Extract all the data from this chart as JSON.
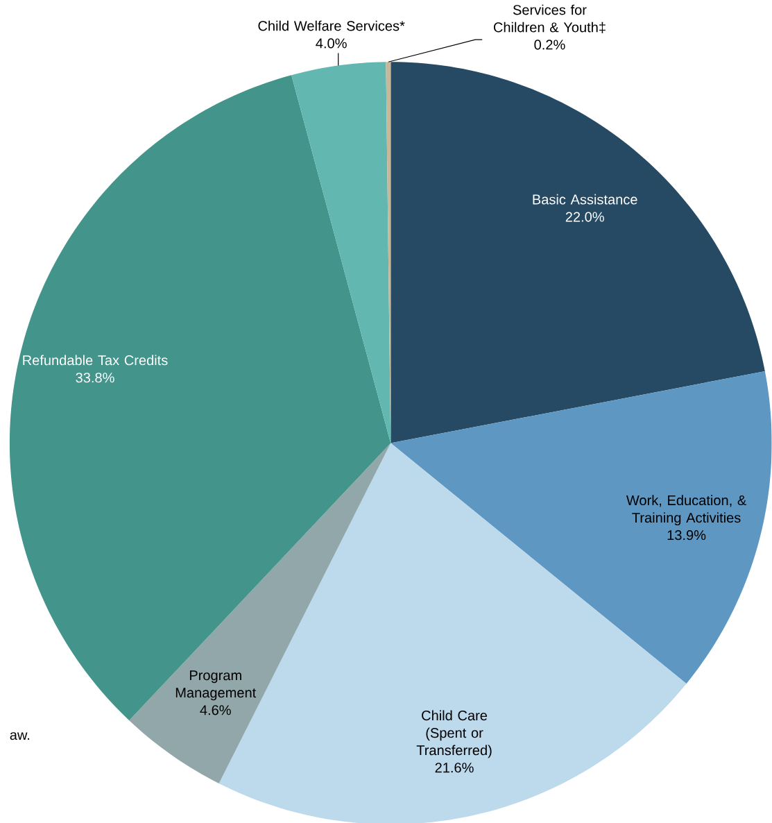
{
  "chart_data": {
    "type": "pie",
    "categories": [
      "Basic Assistance",
      "Work, Education, & Training Activities",
      "Child Care (Spent or Transferred)",
      "Program Management",
      "Refundable Tax Credits",
      "Child Welfare Services*",
      "Services for Children & Youth‡"
    ],
    "values": [
      22.0,
      13.9,
      21.6,
      4.6,
      33.8,
      4.0,
      0.2
    ],
    "colors": [
      "#264a64",
      "#5f97c3",
      "#bdd9ec",
      "#92a7aa",
      "#43948b",
      "#62b8b1",
      "#c8b89a"
    ],
    "value_labels": [
      "22.0%",
      "13.9%",
      "21.6%",
      "4.6%",
      "33.8%",
      "4.0%",
      "0.2%"
    ],
    "annotations": [
      "aw."
    ]
  }
}
